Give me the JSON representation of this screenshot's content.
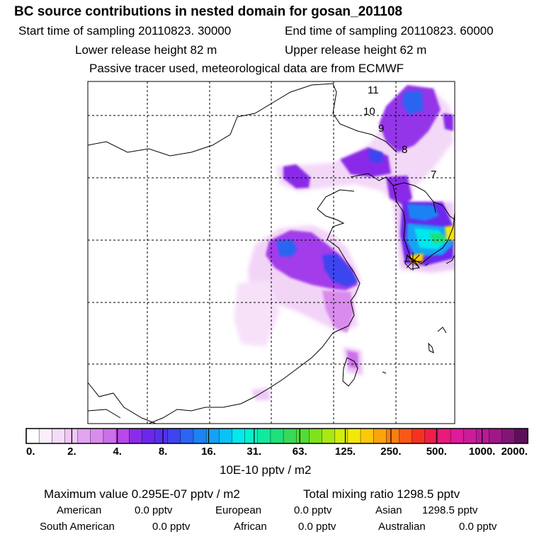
{
  "header": {
    "title": "BC  source contributions in nested domain for gosan_201108",
    "start_label": "Start time of sampling 20110823. 30000",
    "end_label": "End time of sampling 20110823. 60000",
    "lower_release": "Lower release height   82 m",
    "upper_release": "Upper release height   62 m",
    "tracer_note": "Passive tracer used, meteorological data are from ECMWF"
  },
  "chart_data": {
    "type": "heatmap",
    "title": "BC  source contributions in nested domain for gosan_201108",
    "grid": true,
    "trajectory_labels": [
      "11",
      "10",
      "9",
      "8",
      "7"
    ],
    "colorbar": {
      "tick_labels": [
        "0.",
        "2.",
        "4.",
        "8.",
        "16.",
        "31.",
        "63.",
        "125.",
        "250.",
        "500.",
        "1000.",
        "2000."
      ],
      "segment_colors": [
        "#ffffff",
        "#fbeefc",
        "#f5dcf8",
        "#efc8f5",
        "#e2a6f0",
        "#d98ced",
        "#cc6fea",
        "#b947ea",
        "#8a2ce8",
        "#6d26ec",
        "#5530ee",
        "#3d45ef",
        "#2c65f2",
        "#1d82f4",
        "#13a2f5",
        "#0bc2f5",
        "#05e8ee",
        "#04f2c9",
        "#10ea9e",
        "#1fe07a",
        "#38d958",
        "#52dc35",
        "#7fe21c",
        "#a9e812",
        "#d2ec0c",
        "#f4e80a",
        "#fcc80a",
        "#fca40c",
        "#fb7e10",
        "#f95818",
        "#f6321f",
        "#f01d4a",
        "#ea1a7a",
        "#de1b9a",
        "#cc1c9a",
        "#b71a95",
        "#9e1888",
        "#821676",
        "#5e0f5a"
      ],
      "unit": "10E-10 pptv / m2"
    },
    "marker": "Gosan",
    "max_value": "Maximum value  0.295E-07 pptv / m2",
    "total_mixing": "Total mixing ratio     1298.5 pptv"
  },
  "contributions": {
    "american": {
      "label": "American",
      "value": "0.0 pptv"
    },
    "european": {
      "label": "European",
      "value": "0.0 pptv"
    },
    "asian": {
      "label": "Asian",
      "value": "1298.5 pptv"
    },
    "south_american": {
      "label": "South American",
      "value": "0.0 pptv"
    },
    "african": {
      "label": "African",
      "value": "0.0 pptv"
    },
    "australian": {
      "label": "Australian",
      "value": "0.0 pptv"
    }
  }
}
